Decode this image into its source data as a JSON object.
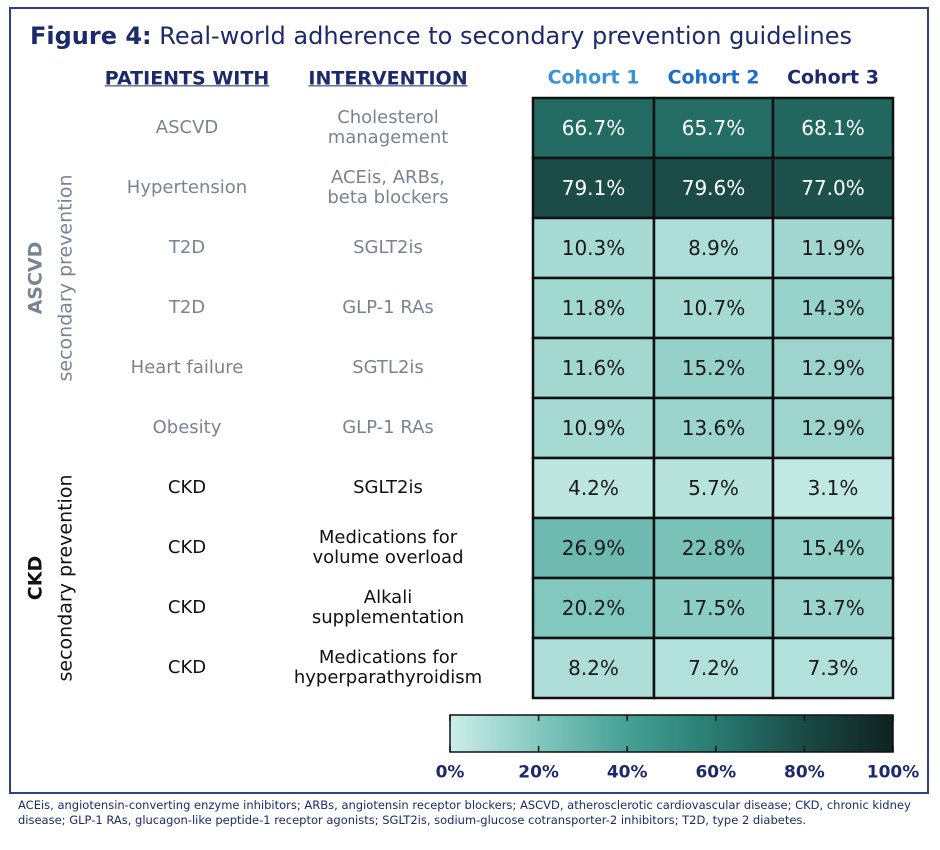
{
  "chart_data": {
    "type": "heatmap",
    "title_prefix": "Figure 4:",
    "title": "Real-world adherence to secondary prevention guidelines",
    "patients_header": "PATIENTS WITH",
    "intervention_header": "INTERVENTION",
    "groups": [
      {
        "label": "ASCVD",
        "sublabel": "secondary prevention"
      },
      {
        "label": "CKD",
        "sublabel": "secondary prevention"
      }
    ],
    "patients": [
      "ASCVD",
      "Hypertension",
      "T2D",
      "T2D",
      "Heart failure",
      "Obesity",
      "CKD",
      "CKD",
      "CKD",
      "CKD"
    ],
    "interventions": [
      "Cholesterol\nmanagement",
      "ACEis, ARBs,\nbeta blockers",
      "SGLT2is",
      "GLP-1 RAs",
      "SGTL2is",
      "GLP-1 RAs",
      "SGLT2is",
      "Medications for\nvolume overload",
      "Alkali\nsupplementation",
      "Medications for\nhyperparathyroidism"
    ],
    "series": [
      {
        "name": "Cohort 1",
        "color": "#3a92d6",
        "values": [
          66.7,
          79.1,
          10.3,
          11.8,
          11.6,
          10.9,
          4.2,
          26.9,
          20.2,
          8.2
        ],
        "value_labels": [
          "66.7%",
          "79.1%",
          "10.3%",
          "11.8%",
          "11.6%",
          "10.9%",
          "4.2%",
          "26.9%",
          "20.2%",
          "8.2%"
        ]
      },
      {
        "name": "Cohort 2",
        "color": "#1f6cc4",
        "values": [
          65.7,
          79.6,
          8.9,
          10.7,
          15.2,
          13.6,
          5.7,
          22.8,
          17.5,
          7.2
        ],
        "value_labels": [
          "65.7%",
          "79.6%",
          "8.9%",
          "10.7%",
          "15.2%",
          "13.6%",
          "5.7%",
          "22.8%",
          "17.5%",
          "7.2%"
        ]
      },
      {
        "name": "Cohort 3",
        "color": "#1c2a6b",
        "values": [
          68.1,
          77.0,
          11.9,
          14.3,
          12.9,
          12.9,
          3.1,
          15.4,
          13.7,
          7.3
        ],
        "value_labels": [
          "68.1%",
          "77.0%",
          "11.9%",
          "14.3%",
          "12.9%",
          "12.9%",
          "3.1%",
          "15.4%",
          "13.7%",
          "7.3%"
        ]
      }
    ],
    "colormap": [
      "#cdeeea",
      "#83c8be",
      "#45a095",
      "#287b71",
      "#1a4a45",
      "#0f2220"
    ],
    "colorbar": {
      "xlim": [
        0,
        100
      ],
      "xticks": [
        {
          "value": 0,
          "label": "0%"
        },
        {
          "value": 20,
          "label": "20%"
        },
        {
          "value": 40,
          "label": "40%"
        },
        {
          "value": 60,
          "label": "60%"
        },
        {
          "value": 80,
          "label": "80%"
        },
        {
          "value": 100,
          "label": "100%"
        }
      ]
    }
  },
  "footnote": "ACEis, angiotensin-converting enzyme inhibitors; ARBs, angiotensin receptor blockers; ASCVD, atherosclerotic cardiovascular disease; CKD, chronic kidney disease; GLP-1 RAs, glucagon-like peptide-1 receptor agonists; SGLT2is, sodium-glucose cotransporter-2 inhibitors; T2D, type 2 diabetes."
}
